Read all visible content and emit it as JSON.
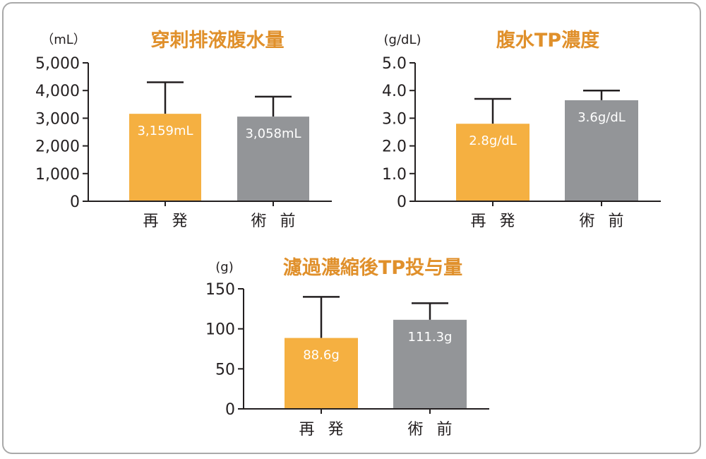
{
  "colors": {
    "recurrence": "#f5b041",
    "preop": "#939598",
    "title": "#e0902b",
    "axis": "#231f20"
  },
  "chart_data": [
    {
      "type": "bar",
      "title": "穿刺排液腹水量",
      "unit": "（mL）",
      "categories": [
        "再 発",
        "術 前"
      ],
      "values": [
        3159,
        3058
      ],
      "error_upper": [
        4300,
        3780
      ],
      "value_labels": [
        "3,159mL",
        "3,058mL"
      ],
      "ylim": [
        0,
        5000
      ],
      "yticks": [
        0,
        1000,
        2000,
        3000,
        4000,
        5000
      ],
      "ytick_labels": [
        "0",
        "1,000",
        "2,000",
        "3,000",
        "4,000",
        "5,000"
      ],
      "grid": false
    },
    {
      "type": "bar",
      "title": "腹水TP濃度",
      "unit": "(g/dL)",
      "categories": [
        "再 発",
        "術 前"
      ],
      "values": [
        2.8,
        3.65
      ],
      "error_upper": [
        3.7,
        4.0
      ],
      "value_labels": [
        "2.8g/dL",
        "3.6g/dL"
      ],
      "ylim": [
        0,
        5
      ],
      "yticks": [
        0,
        1,
        2,
        3,
        4,
        5
      ],
      "ytick_labels": [
        "0",
        "1.0",
        "2.0",
        "3.0",
        "4.0",
        "5.0"
      ],
      "grid": false
    },
    {
      "type": "bar",
      "title": "濾過濃縮後TP投与量",
      "unit": "(g)",
      "categories": [
        "再 発",
        "術 前"
      ],
      "values": [
        88.6,
        111.3
      ],
      "error_upper": [
        140,
        132
      ],
      "value_labels": [
        "88.6g",
        "111.3g"
      ],
      "ylim": [
        0,
        150
      ],
      "yticks": [
        0,
        50,
        100,
        150
      ],
      "ytick_labels": [
        "0",
        "50",
        "100",
        "150"
      ],
      "grid": false
    }
  ]
}
